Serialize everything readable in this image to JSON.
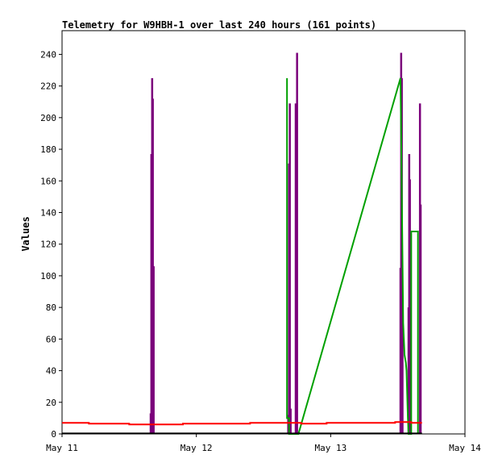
{
  "chart_data": {
    "type": "line",
    "title": "Telemetry for W9HBH-1 over last 240 hours (161 points)",
    "ylabel": "Values",
    "xlabel": "",
    "ylim": [
      0,
      255
    ],
    "yticks": [
      0,
      20,
      40,
      60,
      80,
      100,
      120,
      140,
      160,
      180,
      200,
      220,
      240
    ],
    "xlim": [
      0,
      3
    ],
    "xticks": [
      {
        "x": 0,
        "label": "May 11"
      },
      {
        "x": 1,
        "label": "May 12"
      },
      {
        "x": 2,
        "label": "May 13"
      },
      {
        "x": 3,
        "label": "May 14"
      }
    ],
    "grid": false,
    "legend": "none",
    "series": [
      {
        "color": "#7b007b",
        "style": "spikes",
        "points": [
          [
            0.66,
            13
          ],
          [
            0.665,
            177
          ],
          [
            0.671,
            225
          ],
          [
            0.676,
            212
          ],
          [
            0.682,
            106
          ],
          [
            1.684,
            12
          ],
          [
            1.69,
            171
          ],
          [
            1.696,
            209
          ],
          [
            1.702,
            16
          ],
          [
            1.74,
            209
          ],
          [
            1.75,
            241
          ],
          [
            2.52,
            105
          ],
          [
            2.525,
            241
          ],
          [
            2.53,
            225
          ],
          [
            2.535,
            80
          ],
          [
            2.58,
            80
          ],
          [
            2.585,
            177
          ],
          [
            2.59,
            161
          ],
          [
            2.665,
            209
          ],
          [
            2.67,
            145
          ]
        ]
      },
      {
        "color": "#00a000",
        "style": "line",
        "points": [
          [
            1.675,
            225
          ],
          [
            1.675,
            10
          ],
          [
            1.69,
            10
          ],
          [
            1.69,
            0
          ],
          [
            1.76,
            0
          ],
          [
            2.52,
            225
          ],
          [
            2.53,
            150
          ],
          [
            2.54,
            70
          ],
          [
            2.55,
            50
          ],
          [
            2.56,
            45
          ],
          [
            2.565,
            40
          ],
          [
            2.57,
            25
          ],
          [
            2.575,
            10
          ],
          [
            2.58,
            0
          ],
          [
            2.6,
            0
          ],
          [
            2.6,
            128
          ],
          [
            2.65,
            128
          ],
          [
            2.65,
            0
          ]
        ]
      },
      {
        "color": "#ff0000",
        "style": "line",
        "points": [
          [
            0,
            7
          ],
          [
            0.2,
            7
          ],
          [
            0.2,
            6.5
          ],
          [
            0.5,
            6.5
          ],
          [
            0.5,
            6
          ],
          [
            0.9,
            6
          ],
          [
            0.9,
            6.5
          ],
          [
            1.4,
            6.5
          ],
          [
            1.4,
            7
          ],
          [
            1.78,
            7
          ],
          [
            1.78,
            6.5
          ],
          [
            1.97,
            6.5
          ],
          [
            1.97,
            7
          ],
          [
            2.48,
            7
          ],
          [
            2.48,
            7.5
          ],
          [
            2.6,
            7.5
          ],
          [
            2.6,
            7
          ],
          [
            2.68,
            7
          ]
        ]
      },
      {
        "color": "#000000",
        "style": "line",
        "points": [
          [
            0,
            0.3
          ],
          [
            2.68,
            0.3
          ]
        ]
      }
    ]
  }
}
